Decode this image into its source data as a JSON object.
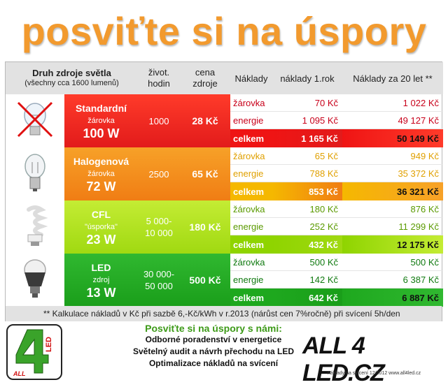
{
  "title": "posviťte si na úspory",
  "header": {
    "col1_title": "Druh zdroje světla",
    "col1_sub": "(všechny cca 1600 lumenů)",
    "col2": "život. hodin",
    "col3": "cena zdroje",
    "col4": "Náklady",
    "col5": "náklady 1.rok",
    "col6": "Náklady za 20 let **"
  },
  "rows": [
    {
      "name": "Standardní",
      "sub": "žárovka",
      "power": "100 W",
      "life": "1000",
      "price": "28 Kč",
      "labels": [
        "žárovka",
        "energie",
        "celkem"
      ],
      "y1": [
        "70 Kč",
        "1 095 Kč",
        "1 165 Kč"
      ],
      "y20": [
        "1 022 Kč",
        "49 127 Kč",
        "50 149 Kč"
      ],
      "color_main": "#e21b1b",
      "color_light": "#ff3b2a",
      "text_color": "#c8001a",
      "total_bg": "#ef1414",
      "bulb_icon": "crossed-incandescent-bulb-icon"
    },
    {
      "name": "Halogenová",
      "sub": "žárovka",
      "power": "72 W",
      "life": "2500",
      "price": "65 Kč",
      "labels": [
        "žárovka",
        "energie",
        "celkem"
      ],
      "y1": [
        "65 Kč",
        "788 Kč",
        "853 Kč"
      ],
      "y20": [
        "949 Kč",
        "35 372 Kč",
        "36 321 Kč"
      ],
      "color_main": "#f07d14",
      "color_light": "#f7a128",
      "text_color": "#e0a000",
      "total_bg": "#f5b800",
      "bulb_icon": "halogen-bulb-icon"
    },
    {
      "name": "CFL",
      "sub": "\"úsporka\"",
      "power": "23 W",
      "life_lines": [
        "5 000-",
        "10 000"
      ],
      "price": "180 Kč",
      "labels": [
        "žárovka",
        "energie",
        "celkem"
      ],
      "y1": [
        "180 Kč",
        "252 Kč",
        "432 Kč"
      ],
      "y20": [
        "876 Kč",
        "11 299 Kč",
        "12 175 Kč"
      ],
      "color_main": "#a0d911",
      "color_light": "#c4ec34",
      "text_color": "#5a9a00",
      "total_bg": "#8fd400",
      "bulb_icon": "cfl-spiral-bulb-icon"
    },
    {
      "name": "LED",
      "sub": "zdroj",
      "power": "13 W",
      "life_lines": [
        "30 000-",
        "50 000"
      ],
      "price": "500 Kč",
      "labels": [
        "žárovka",
        "energie",
        "celkem"
      ],
      "y1": [
        "500 Kč",
        "142 Kč",
        "642 Kč"
      ],
      "y20": [
        "500 Kč",
        "6 387 Kč",
        "6 887 Kč"
      ],
      "color_main": "#1a9e1a",
      "color_light": "#30b830",
      "text_color": "#107a10",
      "total_bg": "#1ea81e",
      "bulb_icon": "led-bulb-icon"
    }
  ],
  "note": "** Kalkulace nákladů v Kč při sazbě 6,-Kč/kWh v r.2013 (nárůst cen 7%ročně) při svícení 5h/den",
  "footer": {
    "title": "Posviťte si na úspory s námi:",
    "lines": [
      "Odborné poradenství v energetice",
      "Světelný audit a návrh přechodu na LED",
      "Optimalizace nákladů na svícení"
    ]
  },
  "brand": "ALL 4 LED.CZ",
  "logo_text": "ALL 4 LED",
  "tiny": "náklady na svícení 12/2012 www.all4led.cz"
}
